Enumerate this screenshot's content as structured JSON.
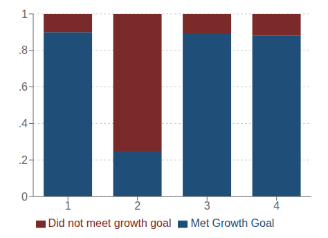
{
  "chart_data": {
    "type": "bar",
    "stacked": true,
    "categories": [
      "1",
      "2",
      "3",
      "4"
    ],
    "series": [
      {
        "name": "Met Growth Goal",
        "color": "#1F4E79",
        "values": [
          0.9,
          0.25,
          0.89,
          0.88
        ]
      },
      {
        "name": "Did not meet growth goal",
        "color": "#7B2A2A",
        "values": [
          0.1,
          0.75,
          0.11,
          0.12
        ]
      }
    ],
    "ylim": [
      0,
      1.0
    ],
    "yticks": [
      0,
      {
        "value": 0.2,
        "label": ".2"
      },
      {
        "value": 0.4,
        "label": ".4"
      },
      {
        "value": 0.6,
        "label": ".6"
      },
      {
        "value": 0.8,
        "label": ".8"
      },
      1
    ],
    "grid": true,
    "legend": "bottom"
  }
}
